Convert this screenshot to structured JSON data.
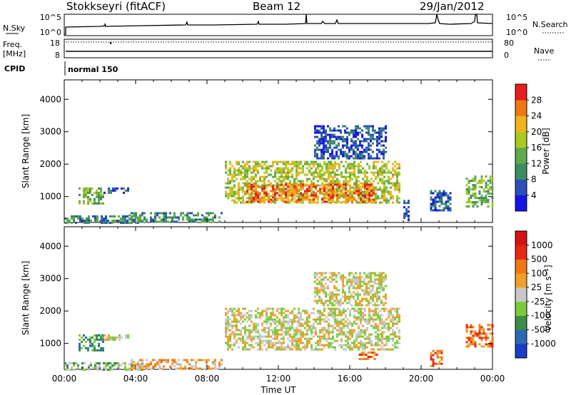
{
  "header": {
    "station": "Stokkseyri (fitACF)",
    "beam": "Beam 12",
    "date": "29/Jan/2012"
  },
  "mini_panels": {
    "nsky": {
      "label": "N.Sky",
      "ticks": [
        "10^5",
        "10^0"
      ]
    },
    "nsearch": {
      "label": "N.Search",
      "ticks": [
        "10^5",
        "10^0"
      ]
    },
    "freq": {
      "label_line1": "Freq.",
      "label_line2": "[MHz]",
      "ticks": [
        "18",
        "8"
      ]
    },
    "nave": {
      "label": "Nave",
      "ticks": [
        "80",
        "0"
      ]
    },
    "cpid": {
      "label": "CPID",
      "value": "normal 150"
    }
  },
  "chart_data": [
    {
      "type": "heatmap",
      "parameter": "Power",
      "ylabel": "Slant Range [km]",
      "yticks": [
        1000,
        2000,
        3000,
        4000
      ],
      "ylim": [
        200,
        4600
      ],
      "xlim_hours": [
        0,
        24
      ],
      "colorbar": {
        "label": "Power [dB]",
        "ticks": [
          "4",
          "8",
          "12",
          "16",
          "20",
          "24",
          "28"
        ],
        "colors": [
          "#1414e6",
          "#2a4fb8",
          "#3c8c64",
          "#5faa4b",
          "#aaca1f",
          "#f0b41e",
          "#f07814",
          "#e61e1e"
        ]
      },
      "regions": [
        {
          "t": [
            0.0,
            4.4
          ],
          "r": [
            220,
            420
          ],
          "lvl": 2
        },
        {
          "t": [
            0.8,
            2.2
          ],
          "r": [
            780,
            1280
          ],
          "lvl": 3
        },
        {
          "t": [
            2.2,
            3.6
          ],
          "r": [
            1100,
            1280
          ],
          "lvl": 1
        },
        {
          "t": [
            3.6,
            8.8
          ],
          "r": [
            220,
            520
          ],
          "lvl": 2
        },
        {
          "t": [
            9.0,
            18.8
          ],
          "r": [
            800,
            2100
          ],
          "lvl": 4
        },
        {
          "t": [
            10.2,
            17.4
          ],
          "r": [
            850,
            1400
          ],
          "lvl": 6
        },
        {
          "t": [
            14.0,
            18.0
          ],
          "r": [
            2200,
            3200
          ],
          "lvl": 1
        },
        {
          "t": [
            19.0,
            19.3
          ],
          "r": [
            300,
            900
          ],
          "lvl": 1
        },
        {
          "t": [
            20.5,
            21.6
          ],
          "r": [
            600,
            1200
          ],
          "lvl": 1
        },
        {
          "t": [
            22.5,
            24.0
          ],
          "r": [
            700,
            1650
          ],
          "lvl": 3
        }
      ]
    },
    {
      "type": "heatmap",
      "parameter": "Velocity",
      "ylabel": "Slant Range [km]",
      "yticks": [
        1000,
        2000,
        3000,
        4000
      ],
      "ylim": [
        200,
        4600
      ],
      "xlim_hours": [
        0,
        24
      ],
      "xticks": [
        "00:00",
        "04:00",
        "08:00",
        "12:00",
        "16:00",
        "20:00",
        "00:00"
      ],
      "xlabel": "Time UT",
      "colorbar": {
        "label": "Velocity [m s⁻¹]",
        "ticks": [
          "1000",
          "500",
          "100",
          "25",
          "-25",
          "-100",
          "-500",
          "-1000"
        ],
        "colors": [
          "#1a3cc8",
          "#2a6ab4",
          "#3c8c4a",
          "#7acb3c",
          "#c8c8c8",
          "#f0a028",
          "#f07814",
          "#e62814",
          "#d21414"
        ]
      },
      "regions": [
        {
          "t": [
            0.0,
            4.4
          ],
          "r": [
            220,
            420
          ],
          "lvl": 3
        },
        {
          "t": [
            0.8,
            2.2
          ],
          "r": [
            780,
            1280
          ],
          "lvl": 2
        },
        {
          "t": [
            2.2,
            3.6
          ],
          "r": [
            1100,
            1280
          ],
          "lvl": 4
        },
        {
          "t": [
            3.6,
            8.8
          ],
          "r": [
            220,
            520
          ],
          "lvl": 5
        },
        {
          "t": [
            9.0,
            18.8
          ],
          "r": [
            800,
            2100
          ],
          "lvl": 4
        },
        {
          "t": [
            14.0,
            18.0
          ],
          "r": [
            2200,
            3200
          ],
          "lvl": 4
        },
        {
          "t": [
            16.5,
            17.5
          ],
          "r": [
            500,
            750
          ],
          "lvl": 6
        },
        {
          "t": [
            20.5,
            21.2
          ],
          "r": [
            300,
            800
          ],
          "lvl": 6
        },
        {
          "t": [
            22.5,
            24.0
          ],
          "r": [
            900,
            1600
          ],
          "lvl": 6
        }
      ]
    }
  ]
}
